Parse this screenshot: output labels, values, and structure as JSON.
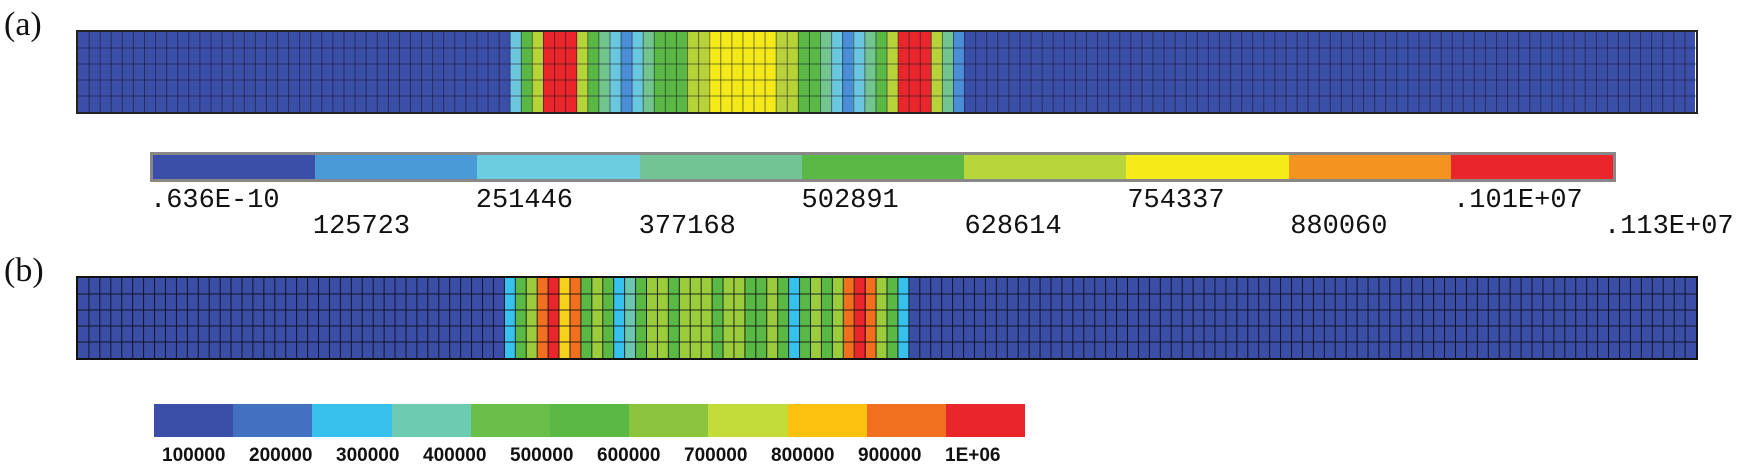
{
  "panels": [
    {
      "label": "(a)",
      "contour_levels": [
        "#3b4fa8",
        "#4a8fd6",
        "#6bc7dd",
        "#73c58f",
        "#5ab845",
        "#b7d33a",
        "#f4ea1a",
        "#f29222",
        "#e8262b"
      ],
      "legend_labels": [
        ".636E-10",
        "125723",
        "251446",
        "377168",
        "502891",
        "628614",
        "754337",
        "880060",
        ".101E+07",
        ".113E+07"
      ],
      "legend_colors": [
        "#3b4fa8",
        "#4a9ad8",
        "#6ccde0",
        "#72c495",
        "#5ab845",
        "#b8d53a",
        "#f5eb17",
        "#f39320",
        "#e8262b"
      ],
      "color_bands": [
        0,
        0,
        0,
        0,
        0,
        0,
        0,
        0,
        0,
        0,
        0,
        0,
        0,
        0,
        0,
        0,
        0,
        0,
        0,
        0,
        0,
        0,
        0,
        0,
        0,
        0,
        0,
        0,
        0,
        0,
        0,
        0,
        0,
        0,
        0,
        0,
        0,
        0,
        0,
        2,
        4,
        5,
        8,
        8,
        8,
        5,
        4,
        3,
        2,
        1,
        2,
        3,
        4,
        4,
        4,
        5,
        5,
        6,
        6,
        6,
        6,
        6,
        6,
        5,
        5,
        4,
        4,
        3,
        2,
        1,
        2,
        3,
        4,
        5,
        8,
        8,
        8,
        5,
        3,
        1,
        0,
        0,
        0,
        0,
        0,
        0,
        0,
        0,
        0,
        0,
        0,
        0,
        0,
        0,
        0,
        0,
        0,
        0,
        0,
        0,
        0,
        0,
        0,
        0,
        0,
        0,
        0,
        0,
        0,
        0,
        0,
        0,
        0,
        0,
        0,
        0,
        0,
        0,
        0,
        0,
        0,
        0,
        0,
        0,
        0,
        0,
        0,
        0,
        0,
        0,
        0,
        0,
        0,
        0,
        0,
        0,
        0,
        0,
        0,
        0,
        0,
        0,
        0,
        0,
        0,
        0
      ]
    },
    {
      "label": "(b)",
      "contour_levels": [
        "#3a4ea6",
        "#37c2ee",
        "#6cc7b0",
        "#5ab845",
        "#9bcc3c",
        "#f7d21b",
        "#f07020",
        "#e8262b"
      ],
      "legend_labels": [
        "100000",
        "200000",
        "300000",
        "400000",
        "500000",
        "600000",
        "700000",
        "800000",
        "900000",
        "1E+06"
      ],
      "legend_colors": [
        "#3b4fa8",
        "#4470c0",
        "#37c2ee",
        "#6ccbb0",
        "#69bf4a",
        "#5ab845",
        "#8bc540",
        "#c4dc38",
        "#fdc20f",
        "#f07020",
        "#e8262b"
      ],
      "color_bands": [
        0,
        0,
        0,
        0,
        0,
        0,
        0,
        0,
        0,
        0,
        0,
        0,
        0,
        0,
        0,
        0,
        0,
        0,
        0,
        0,
        0,
        0,
        0,
        0,
        0,
        0,
        0,
        0,
        0,
        0,
        0,
        0,
        0,
        0,
        0,
        0,
        0,
        0,
        0,
        1,
        3,
        4,
        6,
        7,
        5,
        6,
        3,
        4,
        3,
        1,
        2,
        3,
        4,
        4,
        3,
        4,
        4,
        4,
        3,
        4,
        4,
        3,
        3,
        4,
        3,
        1,
        3,
        4,
        3,
        4,
        6,
        7,
        6,
        4,
        3,
        1,
        0,
        0,
        0,
        0,
        0,
        0,
        0,
        0,
        0,
        0,
        0,
        0,
        0,
        0,
        0,
        0,
        0,
        0,
        0,
        0,
        0,
        0,
        0,
        0,
        0,
        0,
        0,
        0,
        0,
        0,
        0,
        0,
        0,
        0,
        0,
        0,
        0,
        0,
        0,
        0,
        0,
        0,
        0,
        0,
        0,
        0,
        0,
        0,
        0,
        0,
        0,
        0,
        0,
        0,
        0,
        0,
        0,
        0,
        0,
        0,
        0,
        0,
        0,
        0,
        0,
        0,
        0,
        0,
        0,
        0,
        0,
        0
      ]
    }
  ]
}
